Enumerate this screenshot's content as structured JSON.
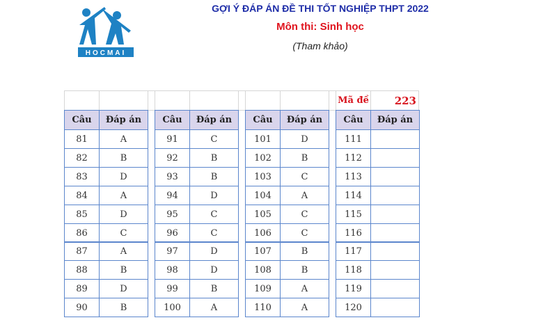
{
  "header": {
    "title": "GỢI Ý ĐÁP ÁN ĐỀ THI TỐT NGHIỆP THPT 2022",
    "subject": "Môn thi: Sinh học",
    "note": "(Tham khảo)",
    "logo_text": "HOCMAI"
  },
  "colors": {
    "title": "#1f2ea8",
    "subject": "#e0141e",
    "border": "#5b86cc",
    "header_bg": "#d9d5ec",
    "logo": "#1e82c4"
  },
  "exam_code": {
    "label": "Mã đề",
    "value": "223"
  },
  "columns": {
    "q": "Câu",
    "a": "Đáp án"
  },
  "tables": [
    {
      "rows": [
        [
          "81",
          "A"
        ],
        [
          "82",
          "B"
        ],
        [
          "83",
          "D"
        ],
        [
          "84",
          "A"
        ],
        [
          "85",
          "D"
        ],
        [
          "86",
          "C"
        ],
        [
          "87",
          "A"
        ],
        [
          "88",
          "B"
        ],
        [
          "89",
          "D"
        ],
        [
          "90",
          "B"
        ]
      ]
    },
    {
      "rows": [
        [
          "91",
          "C"
        ],
        [
          "92",
          "B"
        ],
        [
          "93",
          "B"
        ],
        [
          "94",
          "D"
        ],
        [
          "95",
          "C"
        ],
        [
          "96",
          "C"
        ],
        [
          "97",
          "D"
        ],
        [
          "98",
          "D"
        ],
        [
          "99",
          "B"
        ],
        [
          "100",
          "A"
        ]
      ]
    },
    {
      "rows": [
        [
          "101",
          "D"
        ],
        [
          "102",
          "B"
        ],
        [
          "103",
          "C"
        ],
        [
          "104",
          "A"
        ],
        [
          "105",
          "C"
        ],
        [
          "106",
          "C"
        ],
        [
          "107",
          "B"
        ],
        [
          "108",
          "B"
        ],
        [
          "109",
          "A"
        ],
        [
          "110",
          "A"
        ]
      ]
    },
    {
      "rows": [
        [
          "111",
          ""
        ],
        [
          "112",
          ""
        ],
        [
          "113",
          ""
        ],
        [
          "114",
          ""
        ],
        [
          "115",
          ""
        ],
        [
          "116",
          ""
        ],
        [
          "117",
          ""
        ],
        [
          "118",
          ""
        ],
        [
          "119",
          ""
        ],
        [
          "120",
          ""
        ]
      ]
    }
  ]
}
